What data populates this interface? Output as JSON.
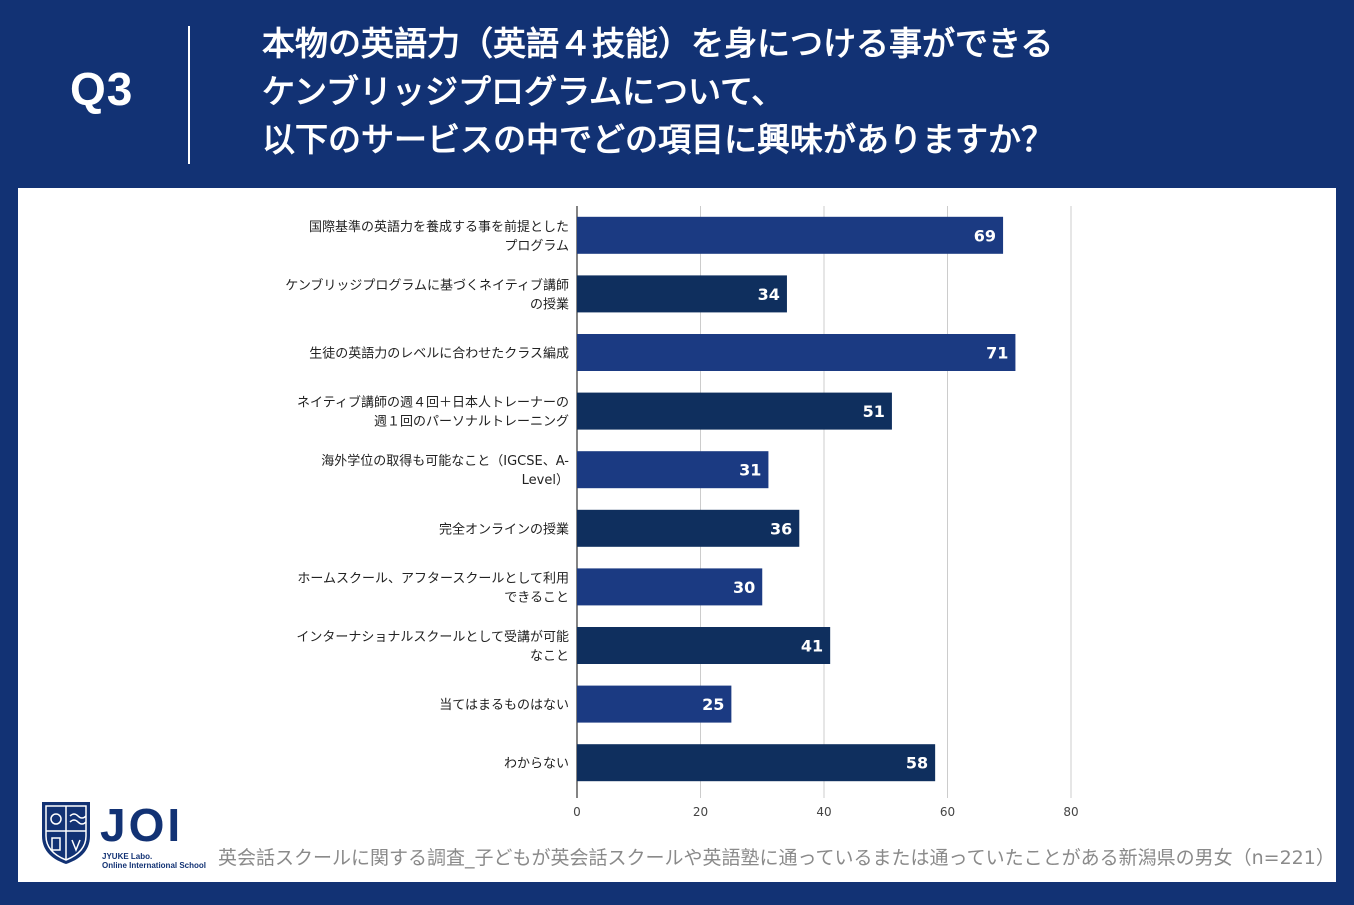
{
  "header": {
    "question_no": "Q3",
    "title_lines": [
      "本物の英語力（英語４技能）を身につける事ができる",
      "ケンブリッジプログラムについて、",
      "以下のサービスの中でどの項目に興味がありますか？"
    ]
  },
  "chart_data": {
    "type": "bar",
    "orientation": "horizontal",
    "categories": [
      [
        "国際基準の英語力を養成する事を前提とした",
        "プログラム"
      ],
      [
        "ケンブリッジプログラムに基づくネイティブ講師",
        "の授業"
      ],
      [
        "生徒の英語力のレベルに合わせたクラス編成"
      ],
      [
        "ネイティブ講師の週４回＋日本人トレーナーの",
        "週１回のパーソナルトレーニング"
      ],
      [
        "海外学位の取得も可能なこと（IGCSE、A-",
        "Level）"
      ],
      [
        "完全オンラインの授業"
      ],
      [
        "ホームスクール、アフタースクールとして利用",
        "できること"
      ],
      [
        "インターナショナルスクールとして受講が可能",
        "なこと"
      ],
      [
        "当てはまるものはない"
      ],
      [
        "わからない"
      ]
    ],
    "values": [
      69,
      34,
      71,
      51,
      31,
      36,
      30,
      41,
      25,
      58
    ],
    "xlim": [
      0,
      80
    ],
    "xticks": [
      0,
      20,
      40,
      60,
      80
    ],
    "grid": true,
    "bar_colors": [
      "#1b3a82",
      "#0f2f5e"
    ],
    "data_label_color": "#ffffff"
  },
  "logo": {
    "wordmark": "JOI",
    "sub_lines": [
      "JYUKE Labo.",
      "Online International School"
    ]
  },
  "footnote": "英会話スクールに関する調査_子どもが英会話スクールや英語塾に通っているまたは通っていたことがある新潟県の男女（n=221）"
}
